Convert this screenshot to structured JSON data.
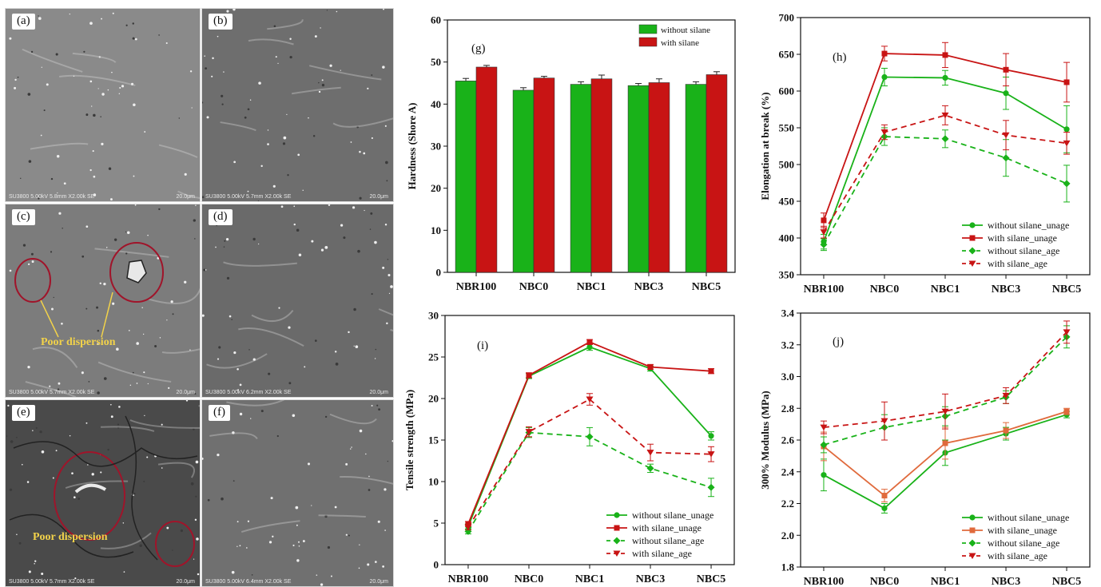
{
  "sem_panels": [
    {
      "tag": "(a)",
      "info": "SU3800 5.00kV 5.8mm X2.00k SE",
      "scale": "20.0μm"
    },
    {
      "tag": "(b)",
      "info": "SU3800 5.00kV 5.7mm X2.00k SE",
      "scale": "20.0μm"
    },
    {
      "tag": "(c)",
      "info": "SU3800 5.00kV 5.7mm X2.00k SE",
      "scale": "20.0μm",
      "callout": "Poor dispersion"
    },
    {
      "tag": "(d)",
      "info": "SU3800 5.00kV 6.2mm X2.00k SE",
      "scale": "20.0μm"
    },
    {
      "tag": "(e)",
      "info": "SU3800 5.00kV 5.7mm X2.00k SE",
      "scale": "20.0μm",
      "callout": "Poor dispersion"
    },
    {
      "tag": "(f)",
      "info": "SU3800 5.00kV 6.4mm X2.00k SE",
      "scale": "20.0μm"
    }
  ],
  "colors": {
    "green": "#19b219",
    "red": "#c81414",
    "sem_bg": "#7a7a7a",
    "circle": "#a0142a",
    "callout": "#f2d24a"
  },
  "chart_data": [
    {
      "panel": "(g)",
      "type": "bar",
      "categories": [
        "NBR100",
        "NBC0",
        "NBC1",
        "NBC3",
        "NBC5"
      ],
      "ylabel": "Hardness (Shore A)",
      "xlabel": "",
      "ylim": [
        0,
        60
      ],
      "yticks": [
        0,
        10,
        20,
        30,
        40,
        50,
        60
      ],
      "legend_position": "top-right",
      "series": [
        {
          "name": "without silane",
          "color": "#19b219",
          "values": [
            45.5,
            43.3,
            44.7,
            44.4,
            44.7
          ],
          "errors": [
            0.6,
            0.6,
            0.6,
            0.5,
            0.6
          ]
        },
        {
          "name": "with silane",
          "color": "#c81414",
          "values": [
            48.8,
            46.2,
            46.0,
            45.1,
            47.0
          ],
          "errors": [
            0.4,
            0.4,
            0.9,
            0.9,
            0.7
          ]
        }
      ]
    },
    {
      "panel": "(h)",
      "type": "line",
      "categories": [
        "NBR100",
        "NBC0",
        "NBC1",
        "NBC3",
        "NBC5"
      ],
      "ylabel": "Elongation at break (%)",
      "xlabel": "",
      "ylim": [
        350,
        700
      ],
      "yticks": [
        350,
        400,
        450,
        500,
        550,
        600,
        650,
        700
      ],
      "legend_position": "bottom-right",
      "series": [
        {
          "name": "without silane_unage",
          "color": "#19b219",
          "dash": false,
          "marker": "circle",
          "values": [
            395,
            619,
            618,
            597,
            548
          ],
          "errors": [
            10,
            12,
            10,
            22,
            32
          ]
        },
        {
          "name": "with silane_unage",
          "color": "#c81414",
          "dash": false,
          "marker": "square",
          "values": [
            424,
            651,
            649,
            629,
            612
          ],
          "errors": [
            10,
            10,
            17,
            22,
            27
          ]
        },
        {
          "name": "without silane_age",
          "color": "#19b219",
          "dash": true,
          "marker": "diamond",
          "values": [
            391,
            538,
            535,
            509,
            474
          ],
          "errors": [
            8,
            12,
            12,
            25,
            25
          ]
        },
        {
          "name": "with silane_age",
          "color": "#c81414",
          "dash": true,
          "marker": "tri-down",
          "values": [
            408,
            544,
            567,
            540,
            529
          ],
          "errors": [
            8,
            10,
            13,
            20,
            15
          ]
        }
      ]
    },
    {
      "panel": "(i)",
      "type": "line",
      "categories": [
        "NBR100",
        "NBC0",
        "NBC1",
        "NBC3",
        "NBC5"
      ],
      "ylabel": "Tensile strength (MPa)",
      "xlabel": "",
      "ylim": [
        0,
        30
      ],
      "yticks": [
        0,
        5,
        10,
        15,
        20,
        25,
        30
      ],
      "legend_position": "bottom-right",
      "series": [
        {
          "name": "without silane_unage",
          "color": "#19b219",
          "dash": false,
          "marker": "circle",
          "values": [
            4.6,
            22.7,
            26.2,
            23.6,
            15.5
          ],
          "errors": [
            0.3,
            0.3,
            0.4,
            0.3,
            0.5
          ]
        },
        {
          "name": "with silane_unage",
          "color": "#c81414",
          "dash": false,
          "marker": "square",
          "values": [
            4.9,
            22.8,
            26.8,
            23.8,
            23.3
          ],
          "errors": [
            0.3,
            0.3,
            0.3,
            0.3,
            0.3
          ]
        },
        {
          "name": "without silane_age",
          "color": "#19b219",
          "dash": true,
          "marker": "diamond",
          "values": [
            4.0,
            15.9,
            15.4,
            11.6,
            9.3
          ],
          "errors": [
            0.3,
            0.6,
            1.1,
            0.5,
            1.1
          ]
        },
        {
          "name": "with silane_age",
          "color": "#c81414",
          "dash": true,
          "marker": "tri-down",
          "values": [
            4.5,
            16.0,
            19.9,
            13.5,
            13.3
          ],
          "errors": [
            0.3,
            0.6,
            0.7,
            1.0,
            0.9
          ]
        }
      ]
    },
    {
      "panel": "(j)",
      "type": "line",
      "categories": [
        "NBR100",
        "NBC0",
        "NBC1",
        "NBC3",
        "NBC5"
      ],
      "ylabel": "300% Modulus (MPa)",
      "xlabel": "",
      "ylim": [
        1.8,
        3.4
      ],
      "yticks": [
        1.8,
        2.0,
        2.2,
        2.4,
        2.6,
        2.8,
        3.0,
        3.2,
        3.4
      ],
      "legend_position": "bottom-right",
      "series": [
        {
          "name": "without silane_unage",
          "color": "#19b219",
          "dash": false,
          "marker": "circle",
          "values": [
            2.38,
            2.17,
            2.52,
            2.64,
            2.76
          ],
          "errors": [
            0.1,
            0.03,
            0.08,
            0.04,
            0.02
          ]
        },
        {
          "name": "with silane_unage",
          "color": "#e06a3c",
          "dash": false,
          "marker": "square",
          "values": [
            2.56,
            2.25,
            2.58,
            2.66,
            2.78
          ],
          "errors": [
            0.09,
            0.04,
            0.1,
            0.05,
            0.02
          ]
        },
        {
          "name": "without silane_age",
          "color": "#19b219",
          "dash": true,
          "marker": "diamond",
          "values": [
            2.57,
            2.68,
            2.75,
            2.87,
            3.25
          ],
          "errors": [
            0.05,
            0.08,
            0.06,
            0.04,
            0.07
          ]
        },
        {
          "name": "with silane_age",
          "color": "#c81414",
          "dash": true,
          "marker": "tri-down",
          "values": [
            2.68,
            2.72,
            2.78,
            2.88,
            3.28
          ],
          "errors": [
            0.04,
            0.12,
            0.11,
            0.05,
            0.07
          ]
        }
      ]
    }
  ]
}
